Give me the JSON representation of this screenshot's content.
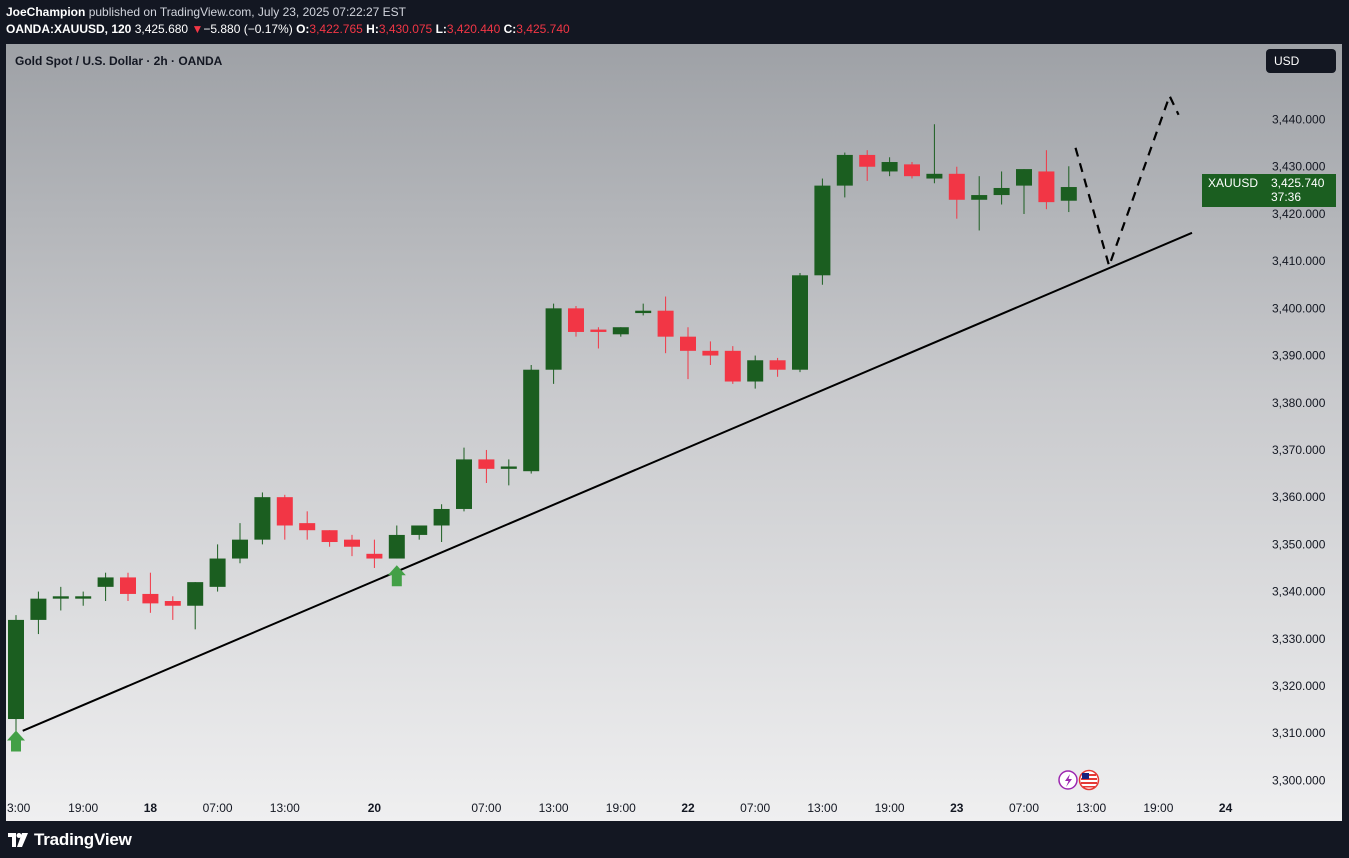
{
  "header": {
    "author": "JoeChampion",
    "published_text": "published on TradingView.com, July 23, 2025 07:22:27 EST",
    "symbol": "OANDA:XAUUSD, 120",
    "last": "3,425.680",
    "change_arrow": "▼",
    "change": "−5.880 (−0.17%)",
    "o_label": "O:",
    "o_val": "3,422.765",
    "h_label": "H:",
    "h_val": "3,430.075",
    "l_label": "L:",
    "l_val": "3,420.440",
    "c_label": "C:",
    "c_val": "3,425.740"
  },
  "currency_button": "USD",
  "footer": {
    "brand": "TradingView",
    "logo_icon": "tradingview-logo-icon"
  },
  "colors": {
    "up": "#1b5e20",
    "down": "#f23645",
    "arrow": "#43a047",
    "price_tag": "#1b5e20"
  },
  "chart_data": {
    "type": "candlestick",
    "title": "Gold Spot / U.S. Dollar · 2h · OANDA",
    "symbol_tag": "XAUUSD",
    "last_price": "3,425.740",
    "countdown": "37:36",
    "ylim": [
      3295,
      3456
    ],
    "y_ticks": [
      "3,300.000",
      "3,310.000",
      "3,320.000",
      "3,330.000",
      "3,340.000",
      "3,350.000",
      "3,360.000",
      "3,370.000",
      "3,380.000",
      "3,390.000",
      "3,400.000",
      "3,410.000",
      "3,420.000",
      "3,430.000",
      "3,440.000"
    ],
    "y_tick_values": [
      3300,
      3310,
      3320,
      3330,
      3340,
      3350,
      3360,
      3370,
      3380,
      3390,
      3400,
      3410,
      3420,
      3430,
      3440
    ],
    "x_ticks": [
      {
        "label": "3:00",
        "i": 0,
        "bold": false
      },
      {
        "label": "19:00",
        "i": 3,
        "bold": false
      },
      {
        "label": "18",
        "i": 6,
        "bold": true
      },
      {
        "label": "07:00",
        "i": 9,
        "bold": false
      },
      {
        "label": "13:00",
        "i": 12,
        "bold": false
      },
      {
        "label": "20",
        "i": 16,
        "bold": true
      },
      {
        "label": "07:00",
        "i": 21,
        "bold": false
      },
      {
        "label": "13:00",
        "i": 24,
        "bold": false
      },
      {
        "label": "19:00",
        "i": 27,
        "bold": false
      },
      {
        "label": "22",
        "i": 30,
        "bold": true
      },
      {
        "label": "07:00",
        "i": 33,
        "bold": false
      },
      {
        "label": "13:00",
        "i": 36,
        "bold": false
      },
      {
        "label": "19:00",
        "i": 39,
        "bold": false
      },
      {
        "label": "23",
        "i": 42,
        "bold": true
      },
      {
        "label": "07:00",
        "i": 45,
        "bold": false
      },
      {
        "label": "13:00",
        "i": 48,
        "bold": false
      },
      {
        "label": "19:00",
        "i": 51,
        "bold": false
      },
      {
        "label": "24",
        "i": 54,
        "bold": true
      }
    ],
    "candles": [
      {
        "o": 3313,
        "h": 3335,
        "l": 3310,
        "c": 3334
      },
      {
        "o": 3334,
        "h": 3340,
        "l": 3331,
        "c": 3338.5
      },
      {
        "o": 3338.5,
        "h": 3341,
        "l": 3336,
        "c": 3339
      },
      {
        "o": 3338.5,
        "h": 3340,
        "l": 3337,
        "c": 3339
      },
      {
        "o": 3341,
        "h": 3344,
        "l": 3338,
        "c": 3343
      },
      {
        "o": 3343,
        "h": 3344,
        "l": 3338,
        "c": 3339.5
      },
      {
        "o": 3339.5,
        "h": 3344,
        "l": 3335.5,
        "c": 3337.5
      },
      {
        "o": 3338,
        "h": 3339,
        "l": 3334,
        "c": 3337
      },
      {
        "o": 3337,
        "h": 3342,
        "l": 3332,
        "c": 3342
      },
      {
        "o": 3341,
        "h": 3350,
        "l": 3340,
        "c": 3347
      },
      {
        "o": 3347,
        "h": 3354.5,
        "l": 3346,
        "c": 3351
      },
      {
        "o": 3351,
        "h": 3361,
        "l": 3350,
        "c": 3360
      },
      {
        "o": 3360,
        "h": 3360.5,
        "l": 3351,
        "c": 3354
      },
      {
        "o": 3354.5,
        "h": 3357,
        "l": 3351,
        "c": 3353
      },
      {
        "o": 3353,
        "h": 3353,
        "l": 3349.5,
        "c": 3350.5
      },
      {
        "o": 3351,
        "h": 3352,
        "l": 3347.5,
        "c": 3349.5
      },
      {
        "o": 3348,
        "h": 3351,
        "l": 3345,
        "c": 3347
      },
      {
        "o": 3347,
        "h": 3354,
        "l": 3347,
        "c": 3352
      },
      {
        "o": 3352,
        "h": 3354,
        "l": 3351,
        "c": 3354
      },
      {
        "o": 3354,
        "h": 3358.5,
        "l": 3350.5,
        "c": 3357.5
      },
      {
        "o": 3357.5,
        "h": 3370.5,
        "l": 3357,
        "c": 3368
      },
      {
        "o": 3368,
        "h": 3370,
        "l": 3363,
        "c": 3366
      },
      {
        "o": 3366,
        "h": 3368,
        "l": 3362.5,
        "c": 3366.5
      },
      {
        "o": 3365.5,
        "h": 3388,
        "l": 3365,
        "c": 3387
      },
      {
        "o": 3387,
        "h": 3401,
        "l": 3384,
        "c": 3400
      },
      {
        "o": 3400,
        "h": 3400.5,
        "l": 3394,
        "c": 3395
      },
      {
        "o": 3395.5,
        "h": 3396,
        "l": 3391.5,
        "c": 3395
      },
      {
        "o": 3394.5,
        "h": 3396,
        "l": 3394,
        "c": 3396
      },
      {
        "o": 3399,
        "h": 3401,
        "l": 3398.5,
        "c": 3399.5
      },
      {
        "o": 3399.5,
        "h": 3402.5,
        "l": 3390.5,
        "c": 3394
      },
      {
        "o": 3394,
        "h": 3396,
        "l": 3385,
        "c": 3391
      },
      {
        "o": 3391,
        "h": 3393,
        "l": 3388,
        "c": 3390
      },
      {
        "o": 3391,
        "h": 3392,
        "l": 3384,
        "c": 3384.5
      },
      {
        "o": 3384.5,
        "h": 3390,
        "l": 3383,
        "c": 3389
      },
      {
        "o": 3389,
        "h": 3389.5,
        "l": 3385.5,
        "c": 3387
      },
      {
        "o": 3387,
        "h": 3407.5,
        "l": 3386.5,
        "c": 3407
      },
      {
        "o": 3407,
        "h": 3427.5,
        "l": 3405,
        "c": 3426
      },
      {
        "o": 3426,
        "h": 3433,
        "l": 3423.5,
        "c": 3432.5
      },
      {
        "o": 3432.5,
        "h": 3433.5,
        "l": 3427,
        "c": 3430
      },
      {
        "o": 3429,
        "h": 3432,
        "l": 3428,
        "c": 3431
      },
      {
        "o": 3430.5,
        "h": 3431,
        "l": 3427.5,
        "c": 3428
      },
      {
        "o": 3427.5,
        "h": 3439,
        "l": 3426.5,
        "c": 3428.5
      },
      {
        "o": 3428.5,
        "h": 3430,
        "l": 3419,
        "c": 3423
      },
      {
        "o": 3423,
        "h": 3428,
        "l": 3416.5,
        "c": 3424
      },
      {
        "o": 3424,
        "h": 3429,
        "l": 3422,
        "c": 3425.5
      },
      {
        "o": 3426,
        "h": 3429.5,
        "l": 3420,
        "c": 3429.5
      },
      {
        "o": 3429,
        "h": 3433.5,
        "l": 3421,
        "c": 3422.5
      },
      {
        "o": 3422.8,
        "h": 3430.1,
        "l": 3420.4,
        "c": 3425.7
      }
    ],
    "trendline": {
      "from": {
        "i": 0.3,
        "y": 3310.5
      },
      "to": {
        "i": 52.5,
        "y": 3416
      }
    },
    "projection": [
      {
        "i": 47.3,
        "y": 3434
      },
      {
        "i": 48.8,
        "y": 3409
      },
      {
        "i": 51.5,
        "y": 3445
      },
      {
        "i": 51.9,
        "y": 3441
      }
    ],
    "buy_arrows": [
      {
        "i": 0,
        "y": 3311
      },
      {
        "i": 17,
        "y": 3346
      }
    ],
    "event_icons": [
      "lightning-icon",
      "us-flag-icon"
    ]
  }
}
